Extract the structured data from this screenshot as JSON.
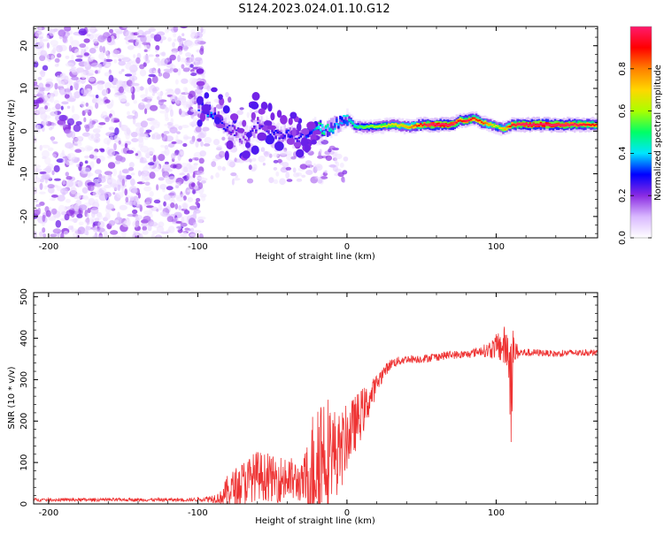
{
  "page_title": "S124.2023.024.01.10.G12",
  "chart_data": [
    {
      "type": "heatmap",
      "title": "S124.2023.024.01.10.G12",
      "xlabel": "Height of straight line (km)",
      "ylabel": "Frequency (Hz)",
      "xlim": [
        -210,
        168
      ],
      "ylim": [
        -25,
        24.5
      ],
      "x_ticks": [
        "-200",
        "-100",
        "0",
        "100"
      ],
      "y_ticks": [
        "-20",
        "-10",
        "0",
        "10",
        "20"
      ],
      "grid": false,
      "signal_track": {
        "x": [
          -100,
          -95,
          -90,
          -85,
          -80,
          -75,
          -70,
          -65,
          -60,
          -55,
          -50,
          -45,
          -40,
          -35,
          -30,
          -25,
          -20,
          -15,
          -10,
          -5,
          0,
          5,
          10,
          20,
          30,
          40,
          50,
          60,
          70,
          75,
          80,
          85,
          90,
          95,
          100,
          105,
          110,
          120,
          130,
          140,
          150,
          160,
          168
        ],
        "y": [
          6,
          5,
          4,
          2,
          1,
          0,
          -2,
          -1,
          2,
          1,
          0,
          -1,
          0,
          -1,
          -2,
          0,
          1,
          0,
          1,
          2,
          3,
          1,
          1,
          1,
          1.5,
          1,
          1.5,
          1.5,
          1.5,
          2.5,
          2.5,
          3,
          2,
          1.5,
          1,
          0.5,
          1.5,
          1.5,
          1.5,
          1.5,
          1.5,
          1.5,
          1.5
        ],
        "amplitude": [
          0.25,
          0.3,
          0.3,
          0.25,
          0.2,
          0.2,
          0.15,
          0.2,
          0.2,
          0.2,
          0.25,
          0.2,
          0.25,
          0.2,
          0.25,
          0.3,
          0.4,
          0.4,
          0.35,
          0.3,
          0.35,
          0.4,
          0.45,
          0.5,
          0.55,
          0.6,
          0.75,
          0.9,
          0.85,
          0.7,
          0.8,
          0.7,
          0.7,
          0.6,
          0.5,
          0.6,
          0.75,
          0.85,
          0.9,
          0.85,
          0.8,
          0.75,
          0.7
        ]
      },
      "noise_region_x": [
        -210,
        -100
      ]
    },
    {
      "type": "colorbar",
      "label": "Normalized spectral amplitude",
      "range": [
        0,
        1
      ],
      "ticks": [
        "0.0",
        "0.2",
        "0.4",
        "0.6",
        "0.8"
      ],
      "colormap": [
        "#ffffff",
        "#d9b8ff",
        "#8a2be2",
        "#0000ff",
        "#00e5ff",
        "#00ff66",
        "#aaff00",
        "#ffd700",
        "#ff8000",
        "#ff0000",
        "#ff1a6e"
      ]
    },
    {
      "type": "line",
      "xlabel": "Height of straight line (km)",
      "ylabel": "SNR (10 * v/v)",
      "xlim": [
        -210,
        168
      ],
      "ylim": [
        0,
        510
      ],
      "x_ticks": [
        "-200",
        "-100",
        "0",
        "100"
      ],
      "y_ticks": [
        "0",
        "100",
        "200",
        "300",
        "400",
        "500"
      ],
      "grid": false,
      "series_color": "#ee3333",
      "snr_profile": {
        "x": [
          -210,
          -150,
          -105,
          -95,
          -85,
          -80,
          -70,
          -60,
          -50,
          -40,
          -30,
          -25,
          -20,
          -15,
          -10,
          -5,
          0,
          5,
          10,
          15,
          20,
          25,
          30,
          40,
          50,
          60,
          70,
          80,
          90,
          95,
          100,
          105,
          108,
          110,
          112,
          115,
          120,
          130,
          140,
          150,
          160,
          168
        ],
        "mean": [
          10,
          10,
          10,
          12,
          15,
          30,
          50,
          70,
          60,
          60,
          50,
          60,
          120,
          130,
          130,
          120,
          160,
          190,
          220,
          250,
          290,
          320,
          340,
          350,
          350,
          355,
          360,
          360,
          370,
          370,
          380,
          380,
          370,
          300,
          370,
          365,
          365,
          365,
          362,
          365,
          365,
          365
        ],
        "spread": [
          4,
          4,
          4,
          6,
          15,
          40,
          55,
          60,
          55,
          60,
          45,
          120,
          180,
          160,
          110,
          100,
          80,
          70,
          60,
          40,
          25,
          15,
          12,
          10,
          10,
          10,
          10,
          10,
          12,
          20,
          30,
          50,
          60,
          160,
          40,
          12,
          10,
          8,
          8,
          8,
          8,
          8
        ]
      }
    }
  ]
}
